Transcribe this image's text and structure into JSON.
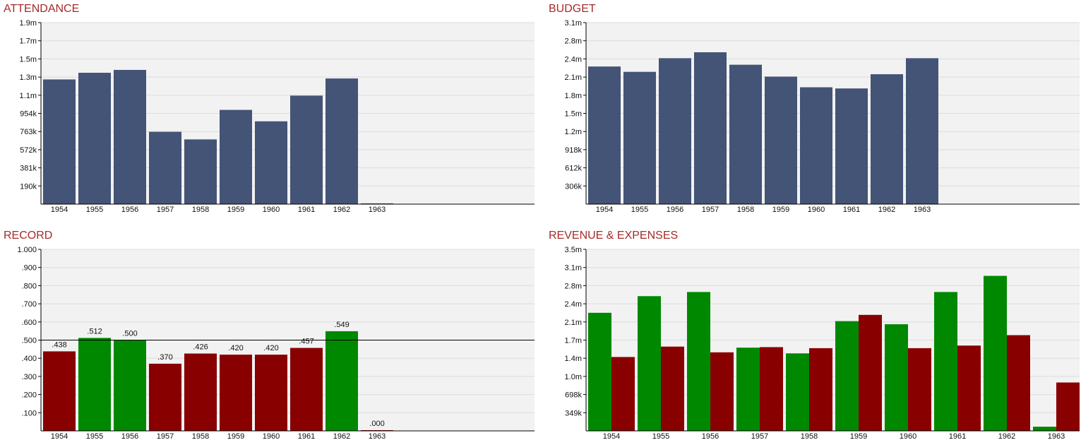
{
  "colors": {
    "title": "#a52a2a",
    "plot_bg": "#f2f2f2",
    "grid": "#dcdcdc",
    "axis": "#000000",
    "bar_navy": "#435476",
    "win_green": "#008800",
    "loss_red": "#880000"
  },
  "attendance": {
    "title": "ATTENDANCE",
    "chart_data": {
      "type": "bar",
      "categories": [
        "1954",
        "1955",
        "1956",
        "1957",
        "1958",
        "1959",
        "1960",
        "1961",
        "1962",
        "1963"
      ],
      "values": [
        1310000,
        1380000,
        1410000,
        760000,
        680000,
        990000,
        870000,
        1140000,
        1320000,
        8000
      ],
      "y_ticks": [
        "190k",
        "381k",
        "572k",
        "763k",
        "954k",
        "1.1m",
        "1.3m",
        "1.5m",
        "1.7m",
        "1.9m"
      ],
      "ylim": [
        0,
        1907000
      ],
      "grid": true
    }
  },
  "budget": {
    "title": "BUDGET",
    "chart_data": {
      "type": "bar",
      "categories": [
        "1954",
        "1955",
        "1956",
        "1957",
        "1958",
        "1959",
        "1960",
        "1961",
        "1962",
        "1963"
      ],
      "values": [
        2320000,
        2230000,
        2460000,
        2560000,
        2350000,
        2150000,
        1970000,
        1950000,
        2190000,
        2460000
      ],
      "y_ticks": [
        "306k",
        "612k",
        "918k",
        "1.2m",
        "1.5m",
        "1.8m",
        "2.1m",
        "2.4m",
        "2.8m",
        "3.1m"
      ],
      "ylim": [
        0,
        3060000
      ],
      "grid": true
    }
  },
  "record": {
    "title": "RECORD",
    "chart_data": {
      "type": "bar",
      "categories": [
        "1954",
        "1955",
        "1956",
        "1957",
        "1958",
        "1959",
        "1960",
        "1961",
        "1962",
        "1963"
      ],
      "values": [
        0.438,
        0.512,
        0.5,
        0.37,
        0.426,
        0.42,
        0.42,
        0.457,
        0.549,
        0.0
      ],
      "value_labels": [
        ".438",
        ".512",
        ".500",
        ".370",
        ".426",
        ".420",
        ".420",
        ".457",
        ".549",
        ".000"
      ],
      "winning": [
        false,
        true,
        true,
        false,
        false,
        false,
        false,
        false,
        true,
        false
      ],
      "y_ticks": [
        ".100",
        ".200",
        ".300",
        ".400",
        ".500",
        ".600",
        ".700",
        ".800",
        ".900",
        "1.000"
      ],
      "reference_line": 0.5,
      "ylim": [
        0,
        1.0
      ],
      "grid": true
    }
  },
  "revenue": {
    "title": "REVENUE & EXPENSES",
    "chart_data": {
      "type": "bar",
      "categories": [
        "1954",
        "1955",
        "1956",
        "1957",
        "1958",
        "1959",
        "1960",
        "1961",
        "1962",
        "1963"
      ],
      "series": [
        {
          "color": "#008800",
          "values": [
            2270000,
            2590000,
            2670000,
            1600000,
            1490000,
            2110000,
            2050000,
            2670000,
            2980000,
            80000
          ]
        },
        {
          "color": "#880000",
          "values": [
            1420000,
            1620000,
            1510000,
            1610000,
            1590000,
            2230000,
            1590000,
            1640000,
            1840000,
            930000
          ]
        }
      ],
      "y_ticks": [
        "349k",
        "698k",
        "1.0m",
        "1.4m",
        "1.7m",
        "2.1m",
        "2.4m",
        "2.8m",
        "3.1m",
        "3.5m"
      ],
      "ylim": [
        0,
        3490000
      ],
      "grid": true
    }
  }
}
